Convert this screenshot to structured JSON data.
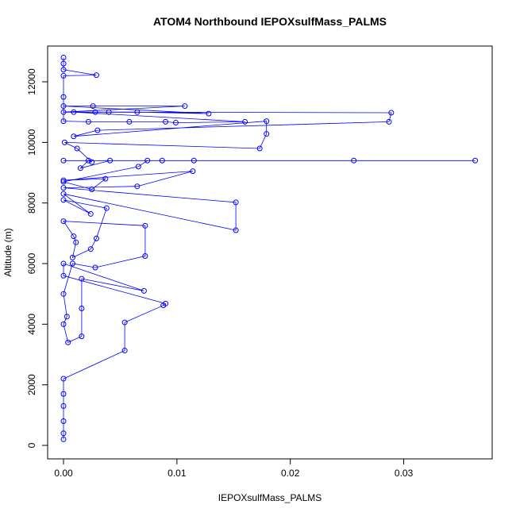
{
  "chart_data": {
    "type": "line",
    "title": "ATOM4 Northbound IEPOXsulfMass_PALMS",
    "xlabel": "IEPOXsulfMass_PALMS",
    "ylabel": "Altitude (m)",
    "color": "#0000ff",
    "markers": true,
    "x": [
      0,
      0,
      0,
      0,
      0,
      0,
      0.0054,
      0.0054,
      0.0088,
      0.009,
      0,
      0,
      0.0071,
      0.0016,
      0.0016,
      0.0016,
      0.0004,
      0,
      0.0003,
      0,
      0.0008,
      0.0028,
      0.0072,
      0.0072,
      0,
      0.0009,
      0.0011,
      0.0008,
      0.0024,
      0.0029,
      0.0038,
      0,
      0.0024,
      0,
      0.0152,
      0.0152,
      0,
      0.0065,
      0.0114,
      0,
      0.0037,
      0.0025,
      0,
      0.0066,
      0.0074,
      0.0087,
      0.0363,
      0.0256,
      0,
      0.0115,
      0.0041,
      0.0015,
      0.0022,
      0.0025,
      0.0012,
      0.0001,
      0.0173,
      0.0179,
      0.0179,
      0.0009,
      0.003,
      0.0287,
      0.0289,
      0,
      0.0107,
      0.0026,
      0,
      0.0128,
      0.0065,
      0.004,
      0.0028,
      0.0009,
      0.016,
      0.0099,
      0.009,
      0.0058,
      0.0022,
      0,
      0,
      0,
      0.0029,
      0,
      0,
      0
    ],
    "values": [
      200,
      400,
      800,
      1300,
      1700,
      2200,
      3130,
      4060,
      4620,
      4680,
      5600,
      6000,
      5100,
      5500,
      4520,
      3600,
      3400,
      4000,
      4250,
      5000,
      6000,
      5870,
      6250,
      7250,
      7400,
      6900,
      6700,
      6200,
      6480,
      6830,
      7830,
      8100,
      7640,
      8300,
      7100,
      8020,
      8500,
      8550,
      9050,
      8750,
      8800,
      8450,
      8700,
      9200,
      9400,
      9400,
      9400,
      9400,
      9400,
      9400,
      9400,
      9150,
      9400,
      9350,
      9800,
      10000,
      9800,
      10280,
      10700,
      10200,
      10400,
      10680,
      10980,
      11000,
      11200,
      11200,
      11200,
      10950,
      11000,
      11000,
      11000,
      11000,
      10680,
      10650,
      10680,
      10680,
      10680,
      10700,
      11500,
      12200,
      12220,
      12400,
      12600,
      12800
    ],
    "xlim": [
      -0.0014,
      0.0378
    ],
    "xticks": [
      {
        "value": 0,
        "label": "0.00"
      },
      {
        "value": 0.01,
        "label": "0.01"
      },
      {
        "value": 0.02,
        "label": "0.02"
      },
      {
        "value": 0.03,
        "label": "0.03"
      }
    ],
    "ylim": [
      -445,
      13180
    ],
    "yticks": [
      0,
      2000,
      4000,
      6000,
      8000,
      10000,
      12000
    ]
  }
}
